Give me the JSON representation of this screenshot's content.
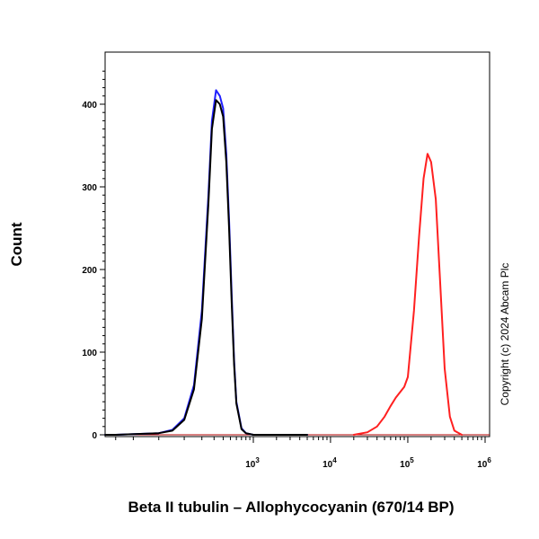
{
  "chart_data": {
    "type": "line",
    "title": "",
    "xlabel": "Beta II tubulin – Allophycocyanin (670/14 BP)",
    "ylabel": "Count",
    "x_scale": "biexponential",
    "ylim": [
      0,
      450
    ],
    "y_ticks": [
      {
        "value": 0,
        "label": "0"
      },
      {
        "value": 100,
        "label": "100"
      },
      {
        "value": 200,
        "label": "200"
      },
      {
        "value": 300,
        "label": "300"
      },
      {
        "value": 400,
        "label": "400"
      }
    ],
    "x_ticks": [
      {
        "value": 1000,
        "base": "10",
        "exp": "3"
      },
      {
        "value": 10000,
        "base": "10",
        "exp": "4"
      },
      {
        "value": 100000,
        "base": "10",
        "exp": "5"
      },
      {
        "value": 1000000,
        "base": "10",
        "exp": "6"
      }
    ],
    "grid": false,
    "series": [
      {
        "color": "#1f1fff",
        "x": [
          -400,
          -200,
          0,
          50,
          100,
          150,
          200,
          250,
          280,
          320,
          360,
          400,
          440,
          480,
          520,
          560,
          600,
          700,
          800,
          1000,
          2000,
          5000
        ],
        "y": [
          0,
          0,
          2,
          6,
          20,
          60,
          150,
          290,
          380,
          417,
          410,
          395,
          340,
          260,
          170,
          90,
          40,
          8,
          2,
          0,
          0,
          0
        ]
      },
      {
        "color": "#000000",
        "x": [
          -400,
          -200,
          0,
          50,
          100,
          150,
          200,
          250,
          280,
          320,
          360,
          400,
          440,
          480,
          520,
          560,
          600,
          700,
          800,
          1000,
          2000,
          5000
        ],
        "y": [
          0,
          0,
          2,
          5,
          18,
          55,
          140,
          280,
          370,
          405,
          400,
          385,
          330,
          250,
          160,
          85,
          38,
          7,
          2,
          0,
          0,
          0
        ]
      },
      {
        "color": "#ff2020",
        "x": [
          20000,
          30000,
          40000,
          50000,
          60000,
          70000,
          80000,
          90000,
          100000,
          120000,
          140000,
          160000,
          180000,
          200000,
          230000,
          260000,
          300000,
          350000,
          400000,
          500000
        ],
        "y": [
          0,
          3,
          10,
          22,
          35,
          45,
          52,
          58,
          70,
          150,
          240,
          310,
          340,
          330,
          285,
          190,
          80,
          22,
          5,
          0
        ]
      }
    ]
  },
  "copyright": "Copyright (c) 2024 Abcam Plc"
}
